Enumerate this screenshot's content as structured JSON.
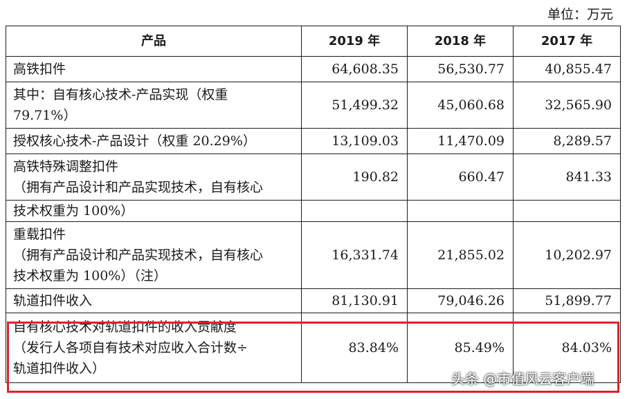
{
  "unit_label": "单位：万元",
  "headers": [
    "产品",
    "2019 年",
    "2018 年",
    "2017 年"
  ],
  "rows": [
    {
      "lines": [
        "高铁扣件"
      ],
      "values": [
        "64,608.35",
        "56,530.77",
        "40,855.47"
      ]
    },
    {
      "lines": [
        "其中：自有核心技术-产品实现（权重",
        "79.71%）"
      ],
      "values": [
        "51,499.32",
        "45,060.68",
        "32,565.90"
      ]
    },
    {
      "lines": [
        "授权核心技术-产品设计（权重 20.29%）"
      ],
      "values": [
        "13,109.03",
        "11,470.09",
        "8,289.57"
      ]
    },
    {
      "lines": [
        "高铁特殊调整扣件",
        "（拥有产品设计和产品实现技术，自有核心",
        "技术权重为 100%）"
      ],
      "values": [
        "190.82",
        "660.47",
        "841.33"
      ]
    },
    {
      "lines": [
        "重载扣件",
        "（拥有产品设计和产品实现技术，自有核心",
        "技术权重为 100%）（注）"
      ],
      "values": [
        "16,331.74",
        "21,855.02",
        "10,202.97"
      ]
    },
    {
      "lines": [
        "轨道扣件收入"
      ],
      "values": [
        "81,130.91",
        "79,046.26",
        "51,899.77"
      ]
    },
    {
      "lines": [
        "自有核心技术对轨道扣件的收入贡献度",
        "（发行人各项自有技术对应收入合计数÷",
        "轨道扣件收入）"
      ],
      "values": [
        "83.84%",
        "85.49%",
        "84.03%"
      ]
    }
  ],
  "watermark": "头条 @市值风云客户端",
  "colors": {
    "highlight": "#e0202a",
    "text": "#1a1a1a"
  }
}
